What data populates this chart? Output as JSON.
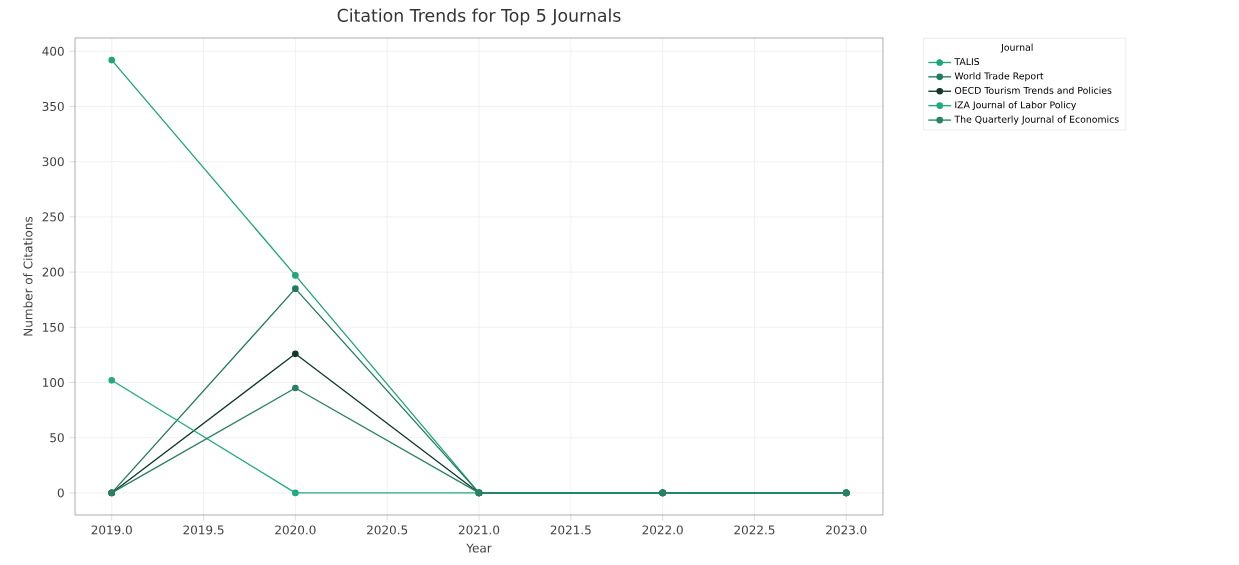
{
  "chart_data": {
    "type": "line",
    "title": "Citation Trends for Top 5 Journals",
    "xlabel": "Year",
    "ylabel": "Number of Citations",
    "legend_title": "Journal",
    "x": [
      2019,
      2020,
      2021,
      2022,
      2023
    ],
    "series": [
      {
        "name": "TALIS",
        "color": "#1fa67a",
        "values": [
          392,
          197,
          0,
          0,
          0
        ]
      },
      {
        "name": "World Trade Report",
        "color": "#217a60",
        "values": [
          0,
          185,
          0,
          0,
          0
        ]
      },
      {
        "name": "OECD Tourism Trends and Policies",
        "color": "#10392c",
        "values": [
          0,
          126,
          0,
          0,
          0
        ]
      },
      {
        "name": "IZA Journal of Labor Policy",
        "color": "#22aa80",
        "values": [
          102,
          0,
          0,
          0,
          0
        ]
      },
      {
        "name": "The Quarterly Journal of Economics",
        "color": "#2a8064",
        "values": [
          0,
          95,
          0,
          0,
          0
        ]
      }
    ],
    "xlim": [
      2018.8,
      2023.2
    ],
    "ylim": [
      -20,
      412
    ],
    "xticks": [
      {
        "value": 2019,
        "label": "2019.0"
      },
      {
        "value": 2019.5,
        "label": "2019.5"
      },
      {
        "value": 2020,
        "label": "2020.0"
      },
      {
        "value": 2020.5,
        "label": "2020.5"
      },
      {
        "value": 2021,
        "label": "2021.0"
      },
      {
        "value": 2021.5,
        "label": "2021.5"
      },
      {
        "value": 2022,
        "label": "2022.0"
      },
      {
        "value": 2022.5,
        "label": "2022.5"
      },
      {
        "value": 2023,
        "label": "2023.0"
      }
    ],
    "yticks": [
      0,
      50,
      100,
      150,
      200,
      250,
      300,
      350,
      400
    ],
    "grid": true,
    "legend": "top right",
    "marker": "circle",
    "line_style": "solid"
  }
}
